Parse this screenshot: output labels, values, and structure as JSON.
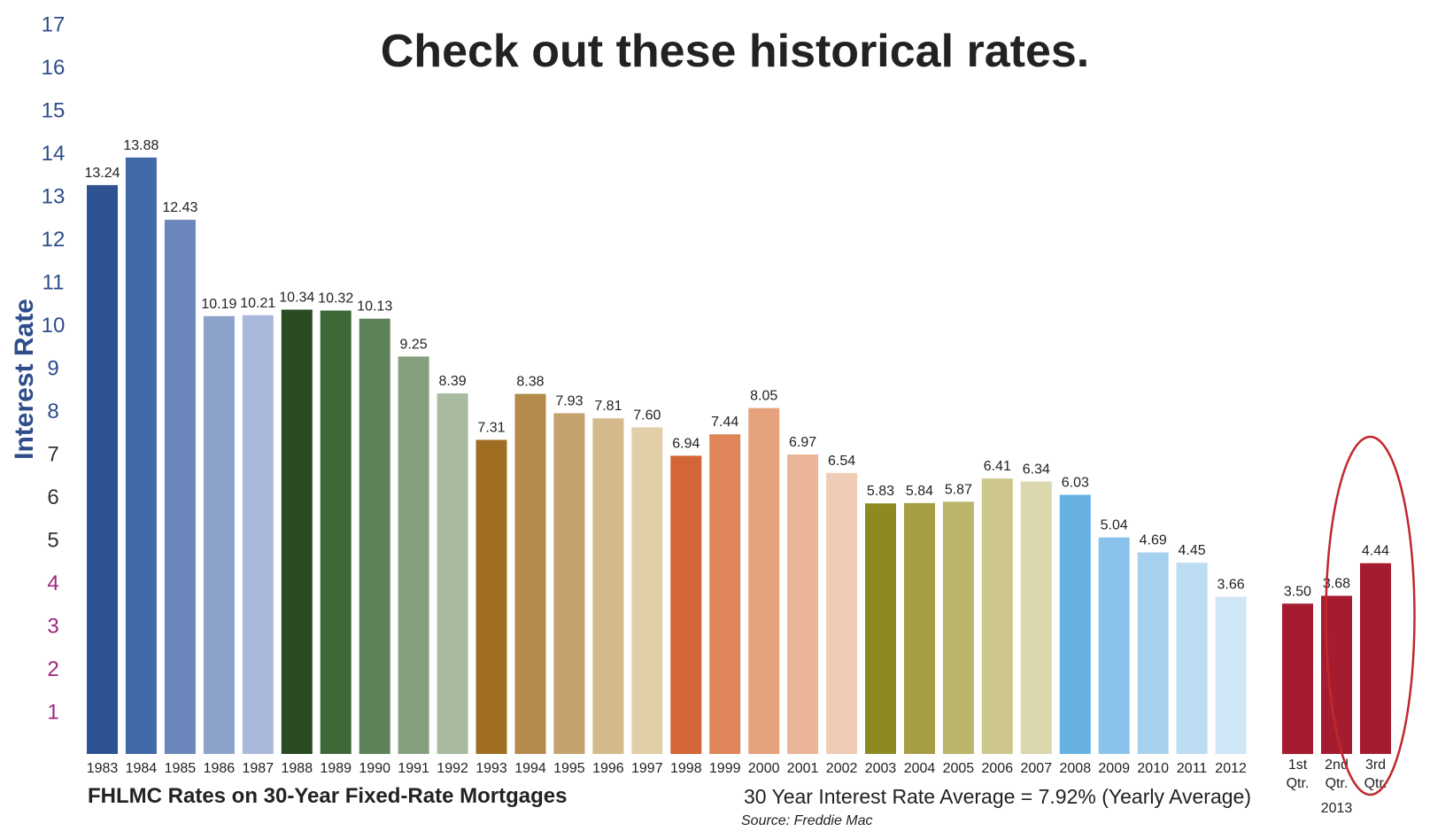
{
  "chart_data": {
    "type": "bar",
    "title": "Check out these historical rates.",
    "ylabel": "Interest Rate",
    "ylim": [
      0,
      17
    ],
    "yticks": [
      "1",
      "2",
      "3",
      "4",
      "5",
      "6",
      "7",
      "8",
      "9",
      "10",
      "11",
      "12",
      "13",
      "14",
      "15",
      "16",
      "17"
    ],
    "ytick_colors": [
      "#a0277e",
      "#a0277e",
      "#a0277e",
      "#a0277e",
      "#333333",
      "#333333",
      "#333333",
      "#2e4d8a",
      "#2e4d8a",
      "#2e4d8a",
      "#2e4d8a",
      "#2e4d8a",
      "#2e4d8a",
      "#2e4d8a",
      "#2e4d8a",
      "#2e4d8a",
      "#2e4d8a"
    ],
    "categories": [
      "1983",
      "1984",
      "1985",
      "1986",
      "1987",
      "1988",
      "1989",
      "1990",
      "1991",
      "1992",
      "1993",
      "1994",
      "1995",
      "1996",
      "1997",
      "1998",
      "1999",
      "2000",
      "2001",
      "2002",
      "2003",
      "2004",
      "2005",
      "2006",
      "2007",
      "2008",
      "2009",
      "2010",
      "2011",
      "2012"
    ],
    "values": [
      13.24,
      13.88,
      12.43,
      10.19,
      10.21,
      10.34,
      10.32,
      10.13,
      9.25,
      8.39,
      7.31,
      8.38,
      7.93,
      7.81,
      7.6,
      6.94,
      7.44,
      8.05,
      6.97,
      6.54,
      5.83,
      5.84,
      5.87,
      6.41,
      6.34,
      6.03,
      5.04,
      4.69,
      4.45,
      3.66
    ],
    "value_labels": [
      "13.24",
      "13.88",
      "12.43",
      "10.19",
      "10.21",
      "10.34",
      "10.32",
      "10.13",
      "9.25",
      "8.39",
      "7.31",
      "8.38",
      "7.93",
      "7.81",
      "7.60",
      "6.94",
      "7.44",
      "8.05",
      "6.97",
      "6.54",
      "5.83",
      "5.84",
      "5.87",
      "6.41",
      "6.34",
      "6.03",
      "5.04",
      "4.69",
      "4.45",
      "3.66"
    ],
    "colors": [
      "#2f5392",
      "#4168a8",
      "#6a86ba",
      "#8da2cb",
      "#a9b8db",
      "#294a22",
      "#3e6a3a",
      "#5e8259",
      "#84a07d",
      "#a8bba0",
      "#a06e23",
      "#b38a4a",
      "#c4a16d",
      "#d4b98b",
      "#e2cfa8",
      "#d46536",
      "#de8559",
      "#e5a27d",
      "#ebb597",
      "#f0ccb5",
      "#8d8a22",
      "#a59e44",
      "#bbb56c",
      "#cdc78e",
      "#dcd8ad",
      "#66b1e2",
      "#89c2ea",
      "#a6d2f0",
      "#bcdcf3",
      "#cfe6f6"
    ],
    "quarters": {
      "year": "2013",
      "labels": [
        [
          "1st",
          "Qtr."
        ],
        [
          "2nd",
          "Qtr."
        ],
        [
          "3rd",
          "Qtr."
        ]
      ],
      "values": [
        3.5,
        3.68,
        4.44
      ],
      "value_labels": [
        "3.50",
        "3.68",
        "4.44"
      ],
      "color": "#a51c30",
      "highlight": "3rd Qtr.",
      "highlight_color": "#c0282f"
    },
    "subtitle": "FHLMC Rates on 30-Year Fixed-Rate Mortgages",
    "average_note": "30 Year Interest Rate Average = 7.92% (Yearly Average)",
    "source": "Source: Freddie Mac"
  }
}
